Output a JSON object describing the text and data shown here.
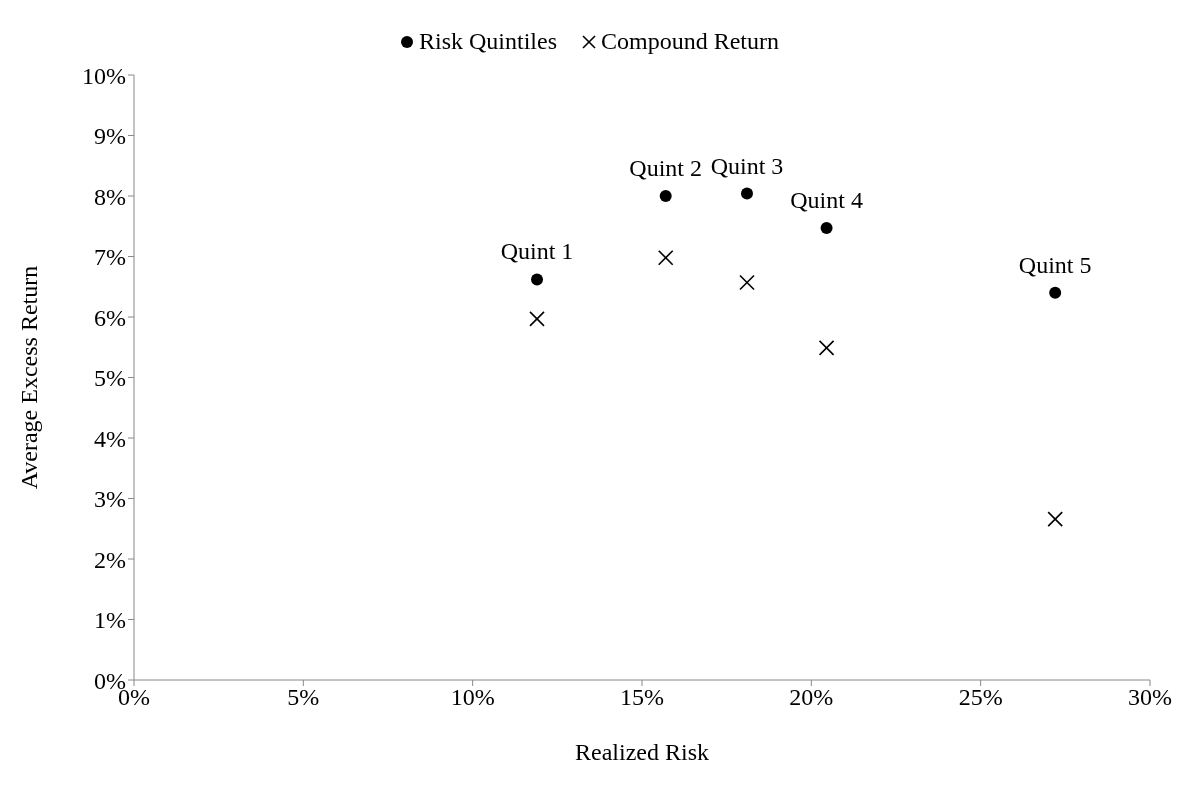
{
  "chart_data": {
    "type": "scatter",
    "xlabel": "Realized Risk",
    "ylabel": "Average Excess Return",
    "xlim": [
      0,
      30
    ],
    "ylim": [
      0,
      10
    ],
    "xticks": [
      {
        "value": 0,
        "label": "0%"
      },
      {
        "value": 5,
        "label": "5%"
      },
      {
        "value": 10,
        "label": "10%"
      },
      {
        "value": 15,
        "label": "15%"
      },
      {
        "value": 20,
        "label": "20%"
      },
      {
        "value": 25,
        "label": "25%"
      },
      {
        "value": 30,
        "label": "30%"
      }
    ],
    "yticks": [
      {
        "value": 0,
        "label": "0%"
      },
      {
        "value": 1,
        "label": "1%"
      },
      {
        "value": 2,
        "label": "2%"
      },
      {
        "value": 3,
        "label": "3%"
      },
      {
        "value": 4,
        "label": "4%"
      },
      {
        "value": 5,
        "label": "5%"
      },
      {
        "value": 6,
        "label": "6%"
      },
      {
        "value": 7,
        "label": "7%"
      },
      {
        "value": 8,
        "label": "8%"
      },
      {
        "value": 9,
        "label": "9%"
      },
      {
        "value": 10,
        "label": "10%"
      }
    ],
    "grid": false,
    "legend": "top",
    "series": [
      {
        "name": "Risk Quintiles",
        "color": "#000000",
        "marker": "circle",
        "x": [
          11.9,
          15.7,
          18.1,
          20.45,
          27.2
        ],
        "values": [
          6.62,
          8.0,
          8.04,
          7.47,
          6.4
        ]
      },
      {
        "name": "Compound Return",
        "color": "#000000",
        "marker": "cross",
        "x": [
          11.9,
          15.7,
          18.1,
          20.45,
          27.2
        ],
        "values": [
          5.97,
          6.98,
          6.57,
          5.49,
          2.66
        ]
      }
    ],
    "annotations": [
      {
        "text": "Quint 1",
        "x": 11.9,
        "y": 6.62
      },
      {
        "text": "Quint 2",
        "x": 15.7,
        "y": 8.0
      },
      {
        "text": "Quint 3",
        "x": 18.1,
        "y": 8.04
      },
      {
        "text": "Quint 4",
        "x": 20.45,
        "y": 7.47
      },
      {
        "text": "Quint 5",
        "x": 27.2,
        "y": 6.4
      }
    ]
  }
}
